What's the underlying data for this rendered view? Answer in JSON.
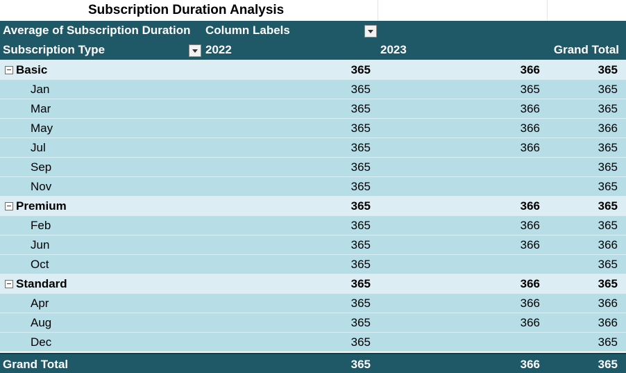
{
  "title": "Subscription Duration Analysis",
  "header": {
    "value_field": "Average of Subscription Duration",
    "column_labels": "Column Labels",
    "row_field": "Subscription Type",
    "col_2022": "2022",
    "col_2023": "2023",
    "grand_total": "Grand Total"
  },
  "groups": [
    {
      "name": "Basic",
      "v2022": "365",
      "v2023": "366",
      "total": "365",
      "months": [
        {
          "name": "Jan",
          "v2022": "365",
          "v2023": "365",
          "total": "365"
        },
        {
          "name": "Mar",
          "v2022": "365",
          "v2023": "366",
          "total": "365"
        },
        {
          "name": "May",
          "v2022": "365",
          "v2023": "366",
          "total": "366"
        },
        {
          "name": "Jul",
          "v2022": "365",
          "v2023": "366",
          "total": "365"
        },
        {
          "name": "Sep",
          "v2022": "365",
          "v2023": "",
          "total": "365"
        },
        {
          "name": "Nov",
          "v2022": "365",
          "v2023": "",
          "total": "365"
        }
      ]
    },
    {
      "name": "Premium",
      "v2022": "365",
      "v2023": "366",
      "total": "365",
      "months": [
        {
          "name": "Feb",
          "v2022": "365",
          "v2023": "366",
          "total": "365"
        },
        {
          "name": "Jun",
          "v2022": "365",
          "v2023": "366",
          "total": "366"
        },
        {
          "name": "Oct",
          "v2022": "365",
          "v2023": "",
          "total": "365"
        }
      ]
    },
    {
      "name": "Standard",
      "v2022": "365",
      "v2023": "366",
      "total": "365",
      "months": [
        {
          "name": "Apr",
          "v2022": "365",
          "v2023": "366",
          "total": "366"
        },
        {
          "name": "Aug",
          "v2022": "365",
          "v2023": "366",
          "total": "366"
        },
        {
          "name": "Dec",
          "v2022": "365",
          "v2023": "",
          "total": "365"
        }
      ]
    }
  ],
  "grand_total_row": {
    "label": "Grand Total",
    "v2022": "365",
    "v2023": "366",
    "total": "365"
  },
  "colors": {
    "header_bg": "#1f5866",
    "group_bg": "#dcedf3",
    "row_bg": "#b7dde7"
  }
}
